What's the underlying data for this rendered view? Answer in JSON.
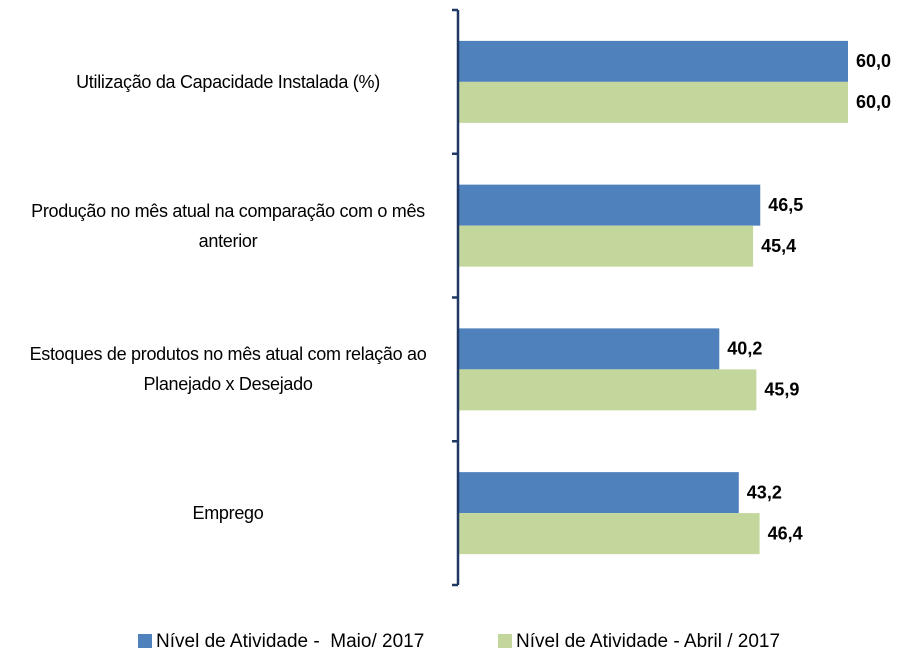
{
  "chart_data": {
    "type": "barh",
    "categories": [
      "Utilização da Capacidade Instalada (%)",
      "Produção no mês atual na comparação com o mês anterior",
      "Estoques de produtos no mês atual com relação ao Planejado x Desejado",
      "Emprego"
    ],
    "series": [
      {
        "name": "Nível de Atividade -  Maio/ 2017",
        "color": "#4f81bd",
        "values": [
          60.0,
          46.5,
          40.2,
          43.2
        ],
        "value_labels": [
          "60,0",
          "46,5",
          "40,2",
          "43,2"
        ]
      },
      {
        "name": "Nível de Atividade - Abril / 2017",
        "color": "#c3d69b",
        "values": [
          60.0,
          45.4,
          45.9,
          46.4
        ],
        "value_labels": [
          "60,0",
          "45,4",
          "45,9",
          "46,4"
        ]
      }
    ],
    "xlim": [
      0,
      60
    ],
    "legend": "bottom"
  }
}
